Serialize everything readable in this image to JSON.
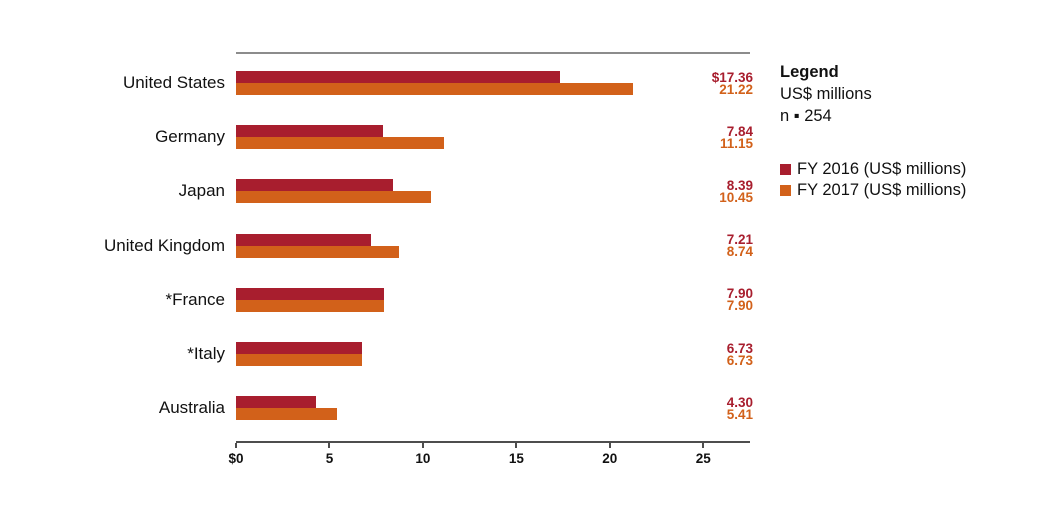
{
  "chart_data": {
    "type": "bar",
    "orientation": "horizontal",
    "title": "",
    "categories": [
      "United States",
      "Germany",
      "Japan",
      "United Kingdom",
      "*France",
      "*Italy",
      "Australia"
    ],
    "series": [
      {
        "name": "FY 2016 (US$ millions)",
        "color": "#a81e2e",
        "values": [
          17.36,
          7.84,
          8.39,
          7.21,
          7.9,
          6.73,
          4.3
        ],
        "value_labels": [
          "$17.36",
          "7.84",
          "8.39",
          "7.21",
          "7.90",
          "6.73",
          "4.30"
        ]
      },
      {
        "name": "FY 2017 (US$ millions)",
        "color": "#d2611a",
        "values": [
          21.22,
          11.15,
          10.45,
          8.74,
          7.9,
          6.73,
          5.41
        ],
        "value_labels": [
          "21.22",
          "11.15",
          "10.45",
          "8.74",
          "7.90",
          "6.73",
          "5.41"
        ]
      }
    ],
    "x_axis": {
      "ticks": [
        0,
        5,
        10,
        15,
        20,
        25
      ],
      "tick_labels": [
        "$0",
        "5",
        "10",
        "15",
        "20",
        "25"
      ],
      "min": 0,
      "max": 27.5
    },
    "grid": false,
    "legend_position": "right"
  },
  "legend": {
    "title": "Legend",
    "subtitle": "US$ millions",
    "n_label": "n ▪ 254",
    "items": [
      {
        "label": "FY 2016 (US$ millions)",
        "color": "#a81e2e"
      },
      {
        "label": "FY 2017 (US$ millions)",
        "color": "#d2611a"
      }
    ]
  },
  "colors": {
    "bar_fy2016": "#a81e2e",
    "bar_fy2017": "#d2611a",
    "top_rule": "#8c8c8c",
    "axis_line": "#4d4d4d",
    "text": "#111111"
  }
}
